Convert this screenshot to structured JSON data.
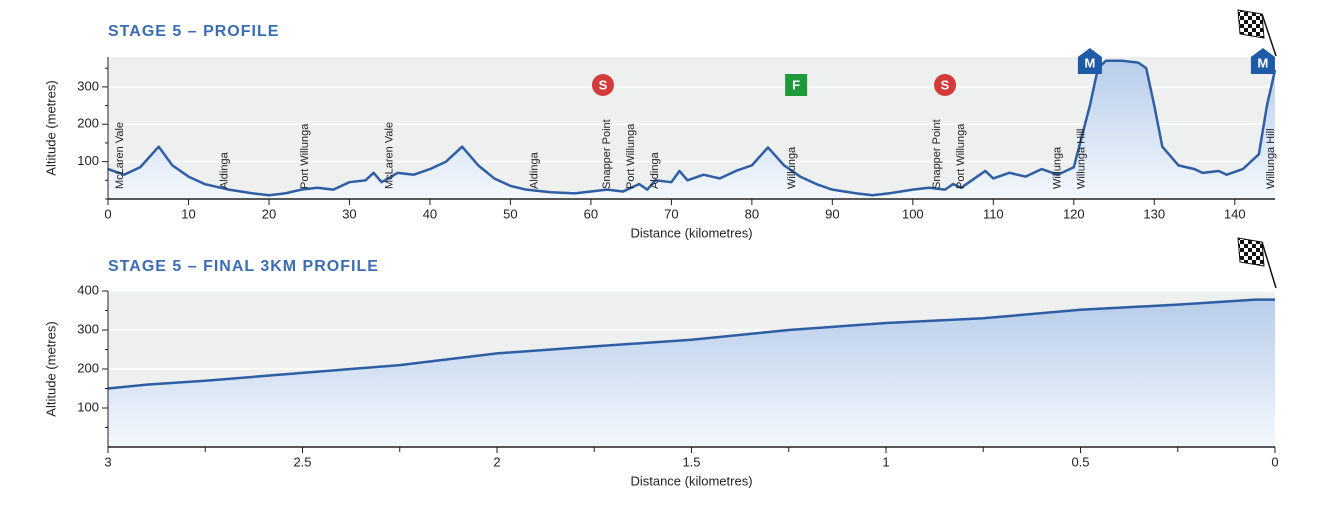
{
  "chart_data": [
    {
      "type": "area",
      "title": "STAGE 5 – PROFILE",
      "x_label": "Distance (kilometres)",
      "y_label": "Altitude (metres)",
      "color": "#2f5ea5",
      "x": [
        0,
        2,
        4,
        6.3,
        8,
        10,
        12,
        15,
        18,
        20,
        22,
        24,
        26,
        28,
        30,
        32,
        33,
        34,
        36,
        38,
        40,
        42,
        44,
        46,
        48,
        50,
        52,
        55,
        58,
        60,
        62,
        64,
        66,
        67,
        68,
        70,
        71,
        72,
        74,
        76,
        78,
        80,
        82,
        84,
        86,
        88,
        90,
        93,
        95,
        97,
        100,
        102,
        104,
        105,
        106,
        108,
        109,
        110,
        112,
        114,
        116,
        118,
        120,
        122,
        123,
        124,
        126,
        128,
        129,
        130,
        131,
        133,
        135,
        136,
        138,
        139,
        141,
        143,
        144,
        145
      ],
      "y": [
        80,
        65,
        85,
        140,
        90,
        60,
        40,
        25,
        15,
        10,
        15,
        25,
        30,
        25,
        45,
        50,
        70,
        45,
        70,
        65,
        80,
        100,
        140,
        90,
        55,
        35,
        25,
        18,
        15,
        20,
        25,
        20,
        40,
        25,
        50,
        45,
        75,
        50,
        65,
        55,
        75,
        90,
        138,
        90,
        60,
        40,
        25,
        15,
        10,
        15,
        25,
        30,
        25,
        40,
        30,
        60,
        75,
        55,
        70,
        60,
        80,
        65,
        85,
        250,
        350,
        370,
        370,
        365,
        350,
        250,
        140,
        90,
        80,
        70,
        75,
        65,
        80,
        120,
        250,
        345
      ],
      "xlim": [
        0,
        145
      ],
      "ylim": [
        0,
        380
      ],
      "xticks": [
        0,
        10,
        20,
        30,
        40,
        50,
        60,
        70,
        80,
        90,
        100,
        110,
        120,
        130,
        140
      ],
      "yticks": [
        100,
        200,
        300
      ],
      "yminor": [
        0,
        50,
        150,
        250,
        350
      ],
      "places": [
        {
          "label": "McLaren Vale",
          "x": 1.5
        },
        {
          "label": "Aldinga",
          "x": 14.5
        },
        {
          "label": "Port Willunga",
          "x": 24.5
        },
        {
          "label": "McLaren Vale",
          "x": 35
        },
        {
          "label": "Aldinga",
          "x": 53
        },
        {
          "label": "Snapper Point",
          "x": 62
        },
        {
          "label": "Port Willunga",
          "x": 65
        },
        {
          "label": "Aldinga",
          "x": 68
        },
        {
          "label": "Willunga",
          "x": 85
        },
        {
          "label": "Snapper Point",
          "x": 103
        },
        {
          "label": "Port Willunga",
          "x": 106
        },
        {
          "label": "Willunga",
          "x": 118
        },
        {
          "label": "Willunga Hill",
          "x": 121
        },
        {
          "label": "Willunga Hill",
          "x": 144.5
        }
      ],
      "markers": [
        {
          "label": "S",
          "x": 61.5,
          "color": "#d43a3a"
        },
        {
          "label": "F",
          "x": 85.5,
          "color": "#1f9a3a"
        },
        {
          "label": "S",
          "x": 104,
          "color": "#d43a3a"
        },
        {
          "label": "M",
          "x": 122,
          "color": "#1e5aa8"
        },
        {
          "label": "M",
          "x": 143.5,
          "color": "#1e5aa8"
        }
      ]
    },
    {
      "type": "area",
      "title": "STAGE 5 – FINAL 3KM PROFILE",
      "x_label": "Distance (kilometres)",
      "y_label": "Altitude (metres)",
      "color": "#2f5ea5",
      "x": [
        3,
        2.9,
        2.75,
        2.5,
        2.25,
        2,
        1.75,
        1.5,
        1.25,
        1,
        0.75,
        0.5,
        0.25,
        0.05,
        0
      ],
      "y": [
        150,
        160,
        170,
        190,
        210,
        240,
        258,
        275,
        300,
        318,
        330,
        352,
        365,
        378,
        378
      ],
      "xlim": [
        3,
        0
      ],
      "ylim": [
        0,
        400
      ],
      "xticks": [
        3,
        2.5,
        2,
        1.5,
        1,
        0.5,
        0
      ],
      "xminor": [
        2.75,
        2.25,
        1.75,
        1.25,
        0.75,
        0.25
      ],
      "yticks": [
        100,
        200,
        300,
        400
      ],
      "yminor": [
        50,
        150,
        250,
        350
      ]
    }
  ]
}
